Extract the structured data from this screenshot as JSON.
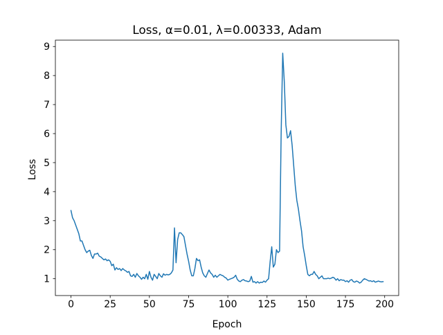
{
  "chart_data": {
    "type": "line",
    "title": "Loss, α=0.01, λ=0.00333, Adam",
    "xlabel": "Epoch",
    "ylabel": "Loss",
    "xlim": [
      -9.95,
      208.95
    ],
    "ylim": [
      0.42,
      9.22
    ],
    "xticks": [
      0,
      25,
      50,
      75,
      100,
      125,
      150,
      175,
      200
    ],
    "yticks": [
      1,
      2,
      3,
      4,
      5,
      6,
      7,
      8,
      9
    ],
    "grid": false,
    "series": [
      {
        "color": "#1f77b4",
        "x": [
          0,
          1,
          2,
          3,
          4,
          5,
          6,
          7,
          8,
          9,
          10,
          11,
          12,
          13,
          14,
          15,
          16,
          17,
          18,
          19,
          20,
          21,
          22,
          23,
          24,
          25,
          26,
          27,
          28,
          29,
          30,
          31,
          32,
          33,
          34,
          35,
          36,
          37,
          38,
          39,
          40,
          41,
          42,
          43,
          44,
          45,
          46,
          47,
          48,
          49,
          50,
          51,
          52,
          53,
          54,
          55,
          56,
          57,
          58,
          59,
          60,
          61,
          62,
          63,
          64,
          65,
          66,
          67,
          68,
          69,
          70,
          71,
          72,
          73,
          74,
          75,
          76,
          77,
          78,
          79,
          80,
          81,
          82,
          83,
          84,
          85,
          86,
          87,
          88,
          89,
          90,
          91,
          92,
          93,
          94,
          95,
          96,
          97,
          98,
          99,
          100,
          101,
          102,
          103,
          104,
          105,
          106,
          107,
          108,
          109,
          110,
          111,
          112,
          113,
          114,
          115,
          116,
          117,
          118,
          119,
          120,
          121,
          122,
          123,
          124,
          125,
          126,
          127,
          128,
          129,
          130,
          131,
          132,
          133,
          134,
          135,
          136,
          137,
          138,
          139,
          140,
          141,
          142,
          143,
          144,
          145,
          146,
          147,
          148,
          149,
          150,
          151,
          152,
          153,
          154,
          155,
          156,
          157,
          158,
          159,
          160,
          161,
          162,
          163,
          164,
          165,
          166,
          167,
          168,
          169,
          170,
          171,
          172,
          173,
          174,
          175,
          176,
          177,
          178,
          179,
          180,
          181,
          182,
          183,
          184,
          185,
          186,
          187,
          188,
          189,
          190,
          191,
          192,
          193,
          194,
          195,
          196,
          197,
          198,
          199
        ],
        "y": [
          3.35,
          3.1,
          3.0,
          2.85,
          2.7,
          2.55,
          2.3,
          2.3,
          2.15,
          2.0,
          1.9,
          1.95,
          1.98,
          1.8,
          1.7,
          1.85,
          1.85,
          1.88,
          1.78,
          1.75,
          1.7,
          1.65,
          1.68,
          1.62,
          1.65,
          1.6,
          1.45,
          1.5,
          1.3,
          1.38,
          1.32,
          1.35,
          1.28,
          1.35,
          1.3,
          1.27,
          1.22,
          1.25,
          1.1,
          1.08,
          1.15,
          1.05,
          1.18,
          1.1,
          1.05,
          0.98,
          1.05,
          1.0,
          1.15,
          0.98,
          1.25,
          1.05,
          0.95,
          1.15,
          1.08,
          1.0,
          1.18,
          1.1,
          1.05,
          1.17,
          1.12,
          1.15,
          1.13,
          1.15,
          1.2,
          1.3,
          2.75,
          1.55,
          2.35,
          2.58,
          2.58,
          2.52,
          2.45,
          2.15,
          1.85,
          1.6,
          1.3,
          1.1,
          1.1,
          1.35,
          1.7,
          1.62,
          1.65,
          1.4,
          1.2,
          1.1,
          1.05,
          1.18,
          1.3,
          1.2,
          1.15,
          1.05,
          1.12,
          1.05,
          1.1,
          1.15,
          1.12,
          1.1,
          1.05,
          1.02,
          0.95,
          0.98,
          1.0,
          1.02,
          1.05,
          1.12,
          0.98,
          0.92,
          0.9,
          0.95,
          0.97,
          0.93,
          0.92,
          0.9,
          0.92,
          1.08,
          0.88,
          0.9,
          0.85,
          0.9,
          0.85,
          0.88,
          0.87,
          0.92,
          0.88,
          0.95,
          1.0,
          1.6,
          2.1,
          1.4,
          1.5,
          2.0,
          1.9,
          1.95,
          6.0,
          8.77,
          7.8,
          6.3,
          5.85,
          5.9,
          6.1,
          5.6,
          4.9,
          4.2,
          3.7,
          3.4,
          3.0,
          2.65,
          2.1,
          1.8,
          1.45,
          1.15,
          1.1,
          1.15,
          1.15,
          1.25,
          1.15,
          1.1,
          1.0,
          1.05,
          1.1,
          1.0,
          1.0,
          1.0,
          1.02,
          1.0,
          1.02,
          1.05,
          1.02,
          0.95,
          1.0,
          0.93,
          0.97,
          0.95,
          0.95,
          0.9,
          0.93,
          0.88,
          0.95,
          0.97,
          0.9,
          0.88,
          0.92,
          0.9,
          0.85,
          0.88,
          0.95,
          1.0,
          0.98,
          0.95,
          0.92,
          0.93,
          0.9,
          0.93,
          0.88,
          0.9,
          0.92,
          0.9,
          0.89,
          0.9
        ]
      }
    ]
  }
}
